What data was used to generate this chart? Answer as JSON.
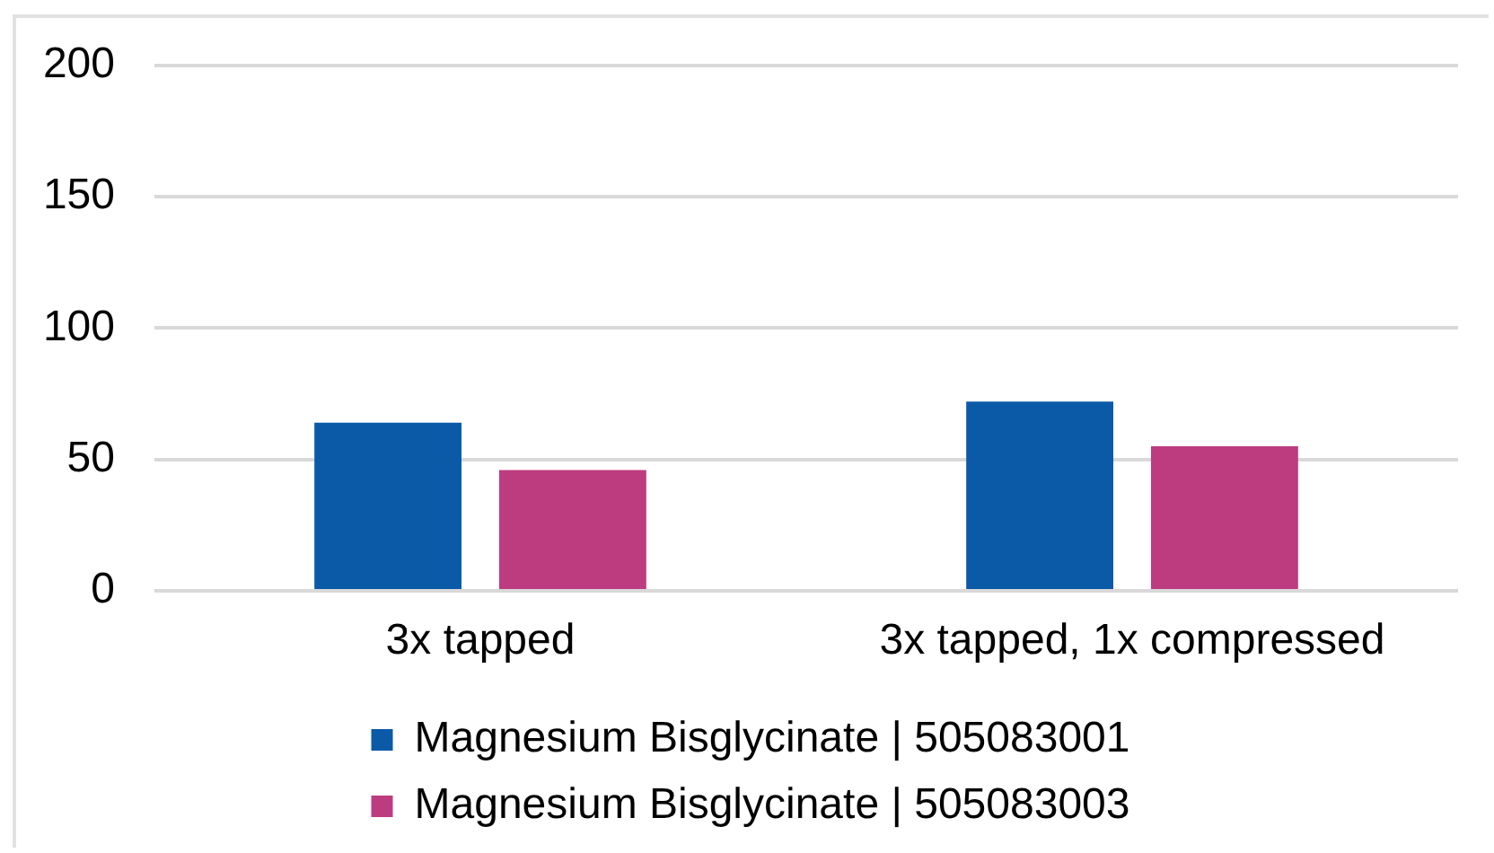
{
  "chart_data": {
    "type": "bar",
    "categories": [
      "3x tapped",
      "3x tapped, 1x compressed"
    ],
    "series": [
      {
        "name": "Magnesium Bisglycinate | 505083001",
        "color": "#0a5aa8",
        "values": [
          64,
          72
        ]
      },
      {
        "name": "Magnesium Bisglycinate | 505083003",
        "color": "#bd3c80",
        "values": [
          46,
          55
        ]
      }
    ],
    "ylim": [
      0,
      200
    ],
    "yticks": [
      0,
      50,
      100,
      150,
      200
    ],
    "grid": "y",
    "legend": "bottom"
  }
}
